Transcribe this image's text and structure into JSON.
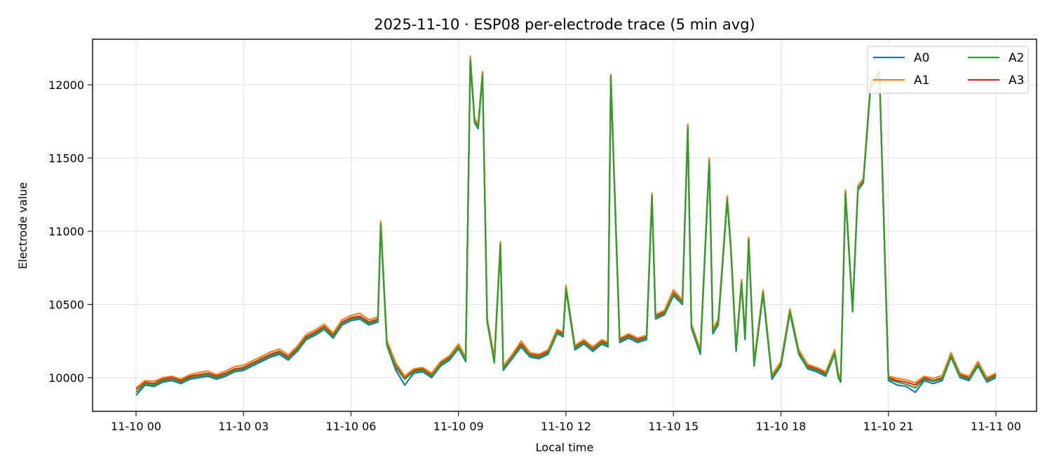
{
  "chart_data": {
    "type": "line",
    "title": "2025-11-10 · ESP08 per-electrode trace (5 min avg)",
    "xlabel": "Local time",
    "ylabel": "Electrode value",
    "x_ticks": [
      "11-10 00",
      "11-10 03",
      "11-10 06",
      "11-10 09",
      "11-10 12",
      "11-10 15",
      "11-10 18",
      "11-10 21",
      "11-11 00"
    ],
    "y_ticks": [
      10000,
      10500,
      11000,
      11500,
      12000
    ],
    "xlim_hours": [
      -1.2,
      25.1
    ],
    "ylim": [
      9770,
      12310
    ],
    "grid": true,
    "legend": {
      "position": "upper right",
      "ncol": 2,
      "entries": [
        "A0",
        "A1",
        "A2",
        "A3"
      ]
    },
    "colors": {
      "A0": "#1f77b4",
      "A1": "#ff7f0e",
      "A2": "#2ca02c",
      "A3": "#d62728"
    },
    "x_hours": [
      0,
      0.25,
      0.5,
      0.75,
      1,
      1.25,
      1.5,
      1.75,
      2,
      2.25,
      2.5,
      2.75,
      3,
      3.25,
      3.5,
      3.75,
      4,
      4.25,
      4.5,
      4.75,
      5,
      5.25,
      5.5,
      5.75,
      6,
      6.25,
      6.5,
      6.75,
      6.83,
      7,
      7.25,
      7.5,
      7.75,
      8,
      8.25,
      8.5,
      8.75,
      9,
      9.2,
      9.33,
      9.45,
      9.55,
      9.67,
      9.8,
      10,
      10.17,
      10.25,
      10.5,
      10.75,
      11,
      11.25,
      11.5,
      11.75,
      11.92,
      12,
      12.25,
      12.5,
      12.75,
      13,
      13.17,
      13.25,
      13.5,
      13.75,
      14,
      14.25,
      14.4,
      14.5,
      14.75,
      15,
      15.25,
      15.4,
      15.5,
      15.75,
      16,
      16.1,
      16.25,
      16.5,
      16.6,
      16.75,
      16.9,
      17,
      17.1,
      17.25,
      17.5,
      17.75,
      18,
      18.25,
      18.5,
      18.75,
      19,
      19.25,
      19.5,
      19.6,
      19.67,
      19.8,
      20,
      20.15,
      20.3,
      20.5,
      20.75,
      21,
      21.25,
      21.5,
      21.75,
      22,
      22.25,
      22.5,
      22.75,
      23,
      23.25,
      23.5,
      23.75,
      24
    ],
    "series": [
      {
        "name": "A3",
        "values": [
          9920,
          9970,
          9960,
          9990,
          10000,
          9980,
          10010,
          10020,
          10030,
          10010,
          10030,
          10060,
          10070,
          10100,
          10130,
          10160,
          10180,
          10140,
          10200,
          10280,
          10310,
          10350,
          10290,
          10380,
          10410,
          10420,
          10380,
          10400,
          11060,
          10240,
          10090,
          10000,
          10050,
          10060,
          10020,
          10100,
          10140,
          10220,
          10130,
          12180,
          11760,
          11720,
          12080,
          10400,
          10130,
          10920,
          10070,
          10150,
          10230,
          10160,
          10150,
          10180,
          10320,
          10300,
          10620,
          10210,
          10250,
          10200,
          10250,
          10230,
          12060,
          10260,
          10290,
          10260,
          10280,
          11250,
          10420,
          10450,
          10580,
          10520,
          11720,
          10360,
          10180,
          11490,
          10320,
          10380,
          11230,
          10900,
          10200,
          10660,
          10280,
          10950,
          10100,
          10590,
          10010,
          10100,
          10460,
          10180,
          10080,
          10060,
          10030,
          10180,
          10020,
          9990,
          11270,
          10470,
          11300,
          11350,
          12000,
          12080,
          10000,
          9980,
          9970,
          9950,
          10000,
          9980,
          10000,
          10160,
          10020,
          10000,
          10100,
          9990,
          10020,
          9980,
          10020
        ]
      },
      {
        "name": "A0",
        "values": [
          9880,
          9950,
          9940,
          9970,
          9980,
          9960,
          9990,
          10000,
          10010,
          9990,
          10010,
          10040,
          10050,
          10080,
          10110,
          10140,
          10160,
          10120,
          10180,
          10260,
          10290,
          10330,
          10270,
          10360,
          10390,
          10400,
          10360,
          10380,
          11040,
          10220,
          10050,
          9950,
          10030,
          10040,
          10000,
          10080,
          10120,
          10200,
          10110,
          12160,
          11740,
          11700,
          12060,
          10380,
          10110,
          10900,
          10050,
          10130,
          10210,
          10140,
          10130,
          10160,
          10300,
          10280,
          10600,
          10190,
          10230,
          10180,
          10230,
          10210,
          12040,
          10240,
          10270,
          10240,
          10260,
          11230,
          10400,
          10430,
          10560,
          10500,
          11700,
          10340,
          10160,
          11470,
          10300,
          10360,
          11210,
          10880,
          10180,
          10640,
          10260,
          10930,
          10080,
          10570,
          9990,
          10080,
          10440,
          10160,
          10060,
          10040,
          10010,
          10160,
          10000,
          9970,
          11250,
          10450,
          11280,
          11330,
          11980,
          12060,
          9980,
          9950,
          9940,
          9900,
          9980,
          9960,
          9980,
          10140,
          10000,
          9980,
          10080,
          9970,
          10000,
          9960,
          10000
        ]
      },
      {
        "name": "A1",
        "values": [
          9930,
          9980,
          9975,
          10000,
          10010,
          9990,
          10020,
          10035,
          10045,
          10020,
          10045,
          10075,
          10085,
          10115,
          10145,
          10175,
          10195,
          10155,
          10215,
          10295,
          10325,
          10365,
          10305,
          10395,
          10425,
          10440,
          10395,
          10415,
          11070,
          10255,
          10100,
          10010,
          10060,
          10070,
          10030,
          10110,
          10150,
          10230,
          10140,
          12195,
          11770,
          11730,
          12090,
          10410,
          10140,
          10930,
          10080,
          10160,
          10250,
          10170,
          10160,
          10190,
          10330,
          10310,
          10630,
          10220,
          10260,
          10210,
          10260,
          10240,
          12070,
          10270,
          10300,
          10270,
          10290,
          11260,
          10430,
          10460,
          10600,
          10530,
          11730,
          10370,
          10190,
          11500,
          10330,
          10400,
          11240,
          10910,
          10210,
          10670,
          10290,
          10960,
          10110,
          10600,
          10020,
          10110,
          10470,
          10190,
          10090,
          10070,
          10040,
          10190,
          10030,
          10000,
          11280,
          10480,
          11310,
          11360,
          12010,
          12090,
          10010,
          9995,
          9985,
          9965,
          10010,
          9995,
          10015,
          10170,
          10030,
          10010,
          10110,
          10000,
          10030,
          9990,
          10030
        ]
      },
      {
        "name": "A2",
        "values": [
          9900,
          9960,
          9950,
          9980,
          9990,
          9970,
          10000,
          10010,
          10020,
          10000,
          10020,
          10050,
          10060,
          10090,
          10120,
          10150,
          10170,
          10130,
          10190,
          10270,
          10300,
          10340,
          10280,
          10370,
          10400,
          10410,
          10370,
          10390,
          11050,
          10230,
          10070,
          9990,
          10040,
          10050,
          10010,
          10090,
          10130,
          10210,
          10120,
          12170,
          11750,
          11710,
          12070,
          10390,
          10100,
          10910,
          10060,
          10140,
          10220,
          10150,
          10140,
          10170,
          10310,
          10290,
          10610,
          10200,
          10240,
          10190,
          10240,
          10220,
          12060,
          10250,
          10280,
          10250,
          10270,
          11240,
          10410,
          10440,
          10570,
          10510,
          11710,
          10350,
          10170,
          11480,
          10310,
          10370,
          11220,
          10890,
          10190,
          10650,
          10270,
          10940,
          10090,
          10580,
          10000,
          10090,
          10450,
          10170,
          10070,
          10050,
          10020,
          10170,
          10010,
          9980,
          11260,
          10460,
          11290,
          11340,
          11990,
          12090,
          9990,
          9970,
          9955,
          9930,
          9990,
          9975,
          9990,
          10150,
          10010,
          9990,
          10090,
          9980,
          10010,
          9970,
          10010
        ]
      }
    ]
  }
}
